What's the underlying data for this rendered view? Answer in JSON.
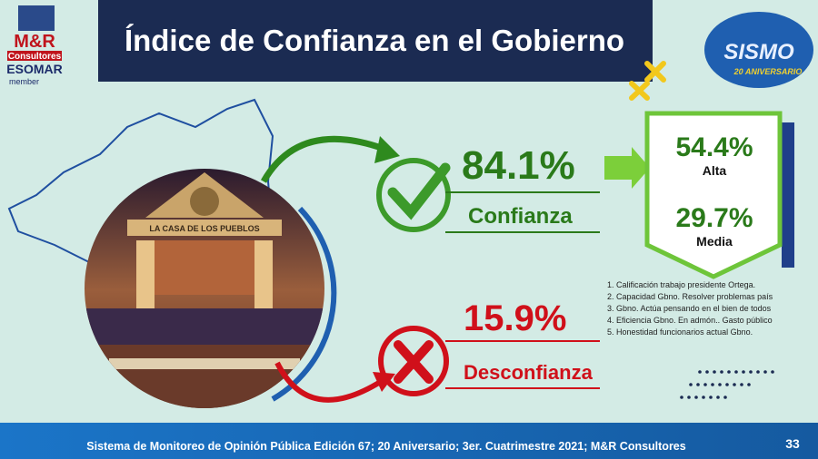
{
  "logo": {
    "brand": "M&R",
    "sub": "Consultores",
    "org": "ESOMAR",
    "member": "member"
  },
  "header": {
    "title": "Índice de Confianza en el Gobierno"
  },
  "badge": {
    "name": "SISMO",
    "tagline": "20 ANIVERSARIO"
  },
  "photo": {
    "sign": "LA CASA DE LOS PUEBLOS"
  },
  "trust": {
    "value": "84.1%",
    "label": "Confianza",
    "breakdown": [
      {
        "value": "54.4%",
        "label": "Alta"
      },
      {
        "value": "29.7%",
        "label": "Media"
      }
    ]
  },
  "distrust": {
    "value": "15.9%",
    "label": "Desconfianza"
  },
  "notes": [
    "1. Calificación trabajo presidente Ortega.",
    "2. Capacidad Gbno. Resolver problemas país",
    "3. Gbno. Actúa pensando en el bien de todos",
    "4. Eficiencia Gbno. En admón.. Gasto público",
    "5. Honestidad funcionarios actual Gbno."
  ],
  "footer": {
    "text": "Sistema de Monitoreo de Opinión Pública  Edición 67; 20 Aniversario;  3er. Cuatrimestre 2021; M&R Consultores",
    "page": "33"
  }
}
